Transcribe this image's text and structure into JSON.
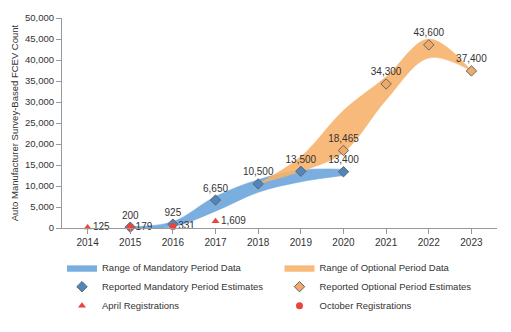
{
  "chart_data": {
    "type": "scatter",
    "y_label": "Auto Manufacturer Survey-Based FCEV Count",
    "xlim": [
      2013.4,
      2023.6
    ],
    "xticks": [
      2014,
      2015,
      2016,
      2017,
      2018,
      2019,
      2020,
      2021,
      2022,
      2023
    ],
    "ylim": [
      0,
      50000
    ],
    "yticks": [
      0,
      {
        "value": 5000,
        "label": "5,000"
      },
      {
        "value": 10000,
        "label": "10,000"
      },
      {
        "value": 15000,
        "label": "15,000"
      },
      {
        "value": 20000,
        "label": "20,000"
      },
      {
        "value": 25000,
        "label": "25,000"
      },
      {
        "value": 30000,
        "label": "30,000"
      },
      {
        "value": 35000,
        "label": "35,000"
      },
      {
        "value": 40000,
        "label": "40,000"
      },
      {
        "value": 45000,
        "label": "45,000"
      },
      {
        "value": 50000,
        "label": "50,000"
      }
    ],
    "grid": false,
    "legend": "bottom",
    "data_labels": true,
    "series": [
      {
        "name": "Range of Mandatory Period Data",
        "type": "band",
        "color": "#6aa5db",
        "x": [
          2015,
          2016,
          2017,
          2018,
          2019,
          2020
        ],
        "lower": [
          0,
          300,
          4000,
          8500,
          11000,
          12500
        ],
        "upper": [
          300,
          1500,
          7500,
          11500,
          13800,
          14000
        ]
      },
      {
        "name": "Range of Optional Period Data",
        "type": "band",
        "color": "#f7b36c",
        "x": [
          2018,
          2019,
          2020,
          2021,
          2022,
          2023
        ],
        "lower": [
          10500,
          13500,
          18000,
          30500,
          40500,
          37400
        ],
        "upper": [
          10500,
          17000,
          28000,
          36000,
          45000,
          37400
        ]
      },
      {
        "name": "Reported Mandatory Period Estimates",
        "type": "scatter",
        "marker": "diamond",
        "color": "#4f86bd",
        "x": [
          2015,
          2016,
          2017,
          2018,
          2019,
          2020
        ],
        "values": [
          200,
          925,
          6650,
          10500,
          13500,
          13400
        ],
        "value_labels": [
          "200",
          "925",
          "6,650",
          "10,500",
          "13,500",
          "13,400"
        ]
      },
      {
        "name": "Reported Optional Period Estimates",
        "type": "scatter",
        "marker": "diamond",
        "color": "#eeaa6a",
        "x": [
          2020,
          2021,
          2022,
          2023
        ],
        "values": [
          18465,
          34300,
          43600,
          37400
        ],
        "value_labels": [
          "18,465",
          "34,300",
          "43,600",
          "37,400"
        ]
      },
      {
        "name": "April Registrations",
        "type": "scatter",
        "marker": "triangle",
        "color": "#e8453c",
        "x": [
          2014,
          2017
        ],
        "values": [
          125,
          1609
        ],
        "value_labels": [
          "125",
          "1,609"
        ]
      },
      {
        "name": "October Registrations",
        "type": "scatter",
        "marker": "circle",
        "color": "#e8453c",
        "x": [
          2015,
          2016
        ],
        "values": [
          179,
          331
        ],
        "value_labels": [
          "179",
          "331"
        ]
      }
    ]
  }
}
